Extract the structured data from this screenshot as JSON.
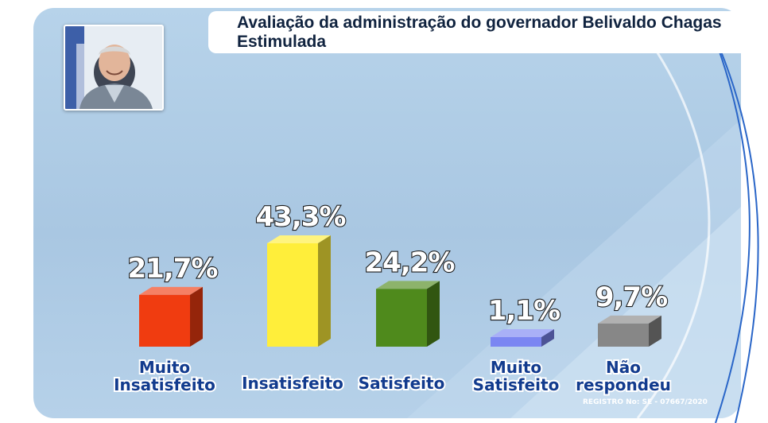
{
  "header": {
    "title_line1": "Avaliação da administração do governador Belivaldo Chagas",
    "title_line2": "Estimulada"
  },
  "footer": {
    "registro": "REGISTRO No: SE - 07667/2020"
  },
  "colors": {
    "panel": "#adcae4",
    "title_text": "#10233f",
    "category_text": "#123b8e"
  },
  "chart_data": {
    "type": "bar",
    "title": "Avaliação da administração do governador Belivaldo Chagas",
    "subtitle": "Estimulada",
    "categories": [
      [
        "Muito",
        "Insatisfeito"
      ],
      [
        "Insatisfeito"
      ],
      [
        "Satisfeito"
      ],
      [
        "Muito",
        "Satisfeito"
      ],
      [
        "Não",
        "respondeu"
      ]
    ],
    "values": [
      21.7,
      43.3,
      24.2,
      1.1,
      9.7
    ],
    "value_labels": [
      "21,7%",
      "43,3%",
      "24,2%",
      "1,1%",
      "9,7%"
    ],
    "colors": [
      "#f03c10",
      "#ffee3a",
      "#4f8a1c",
      "#7b86f2",
      "#878787"
    ],
    "unit": "%",
    "ylim": [
      0,
      43.3
    ],
    "grid": false,
    "legend": "none"
  }
}
